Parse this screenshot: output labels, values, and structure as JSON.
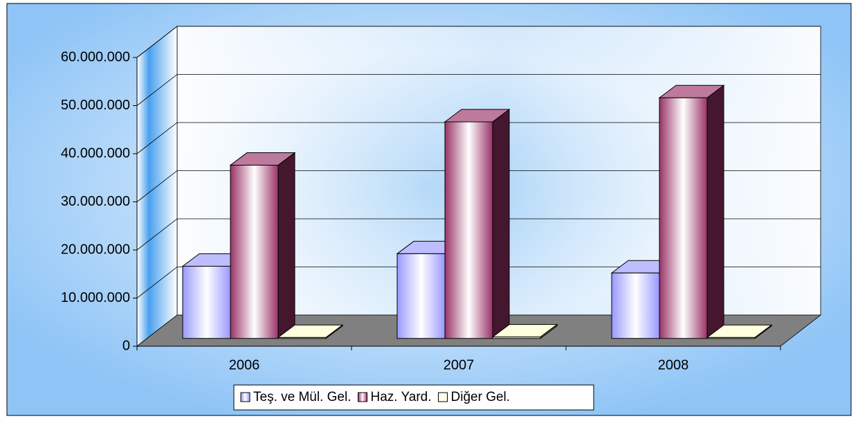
{
  "chart_data": {
    "type": "bar3d",
    "categories": [
      "2006",
      "2007",
      "2008"
    ],
    "series": [
      {
        "name": "Teş. ve Mül. Gel.",
        "color": "#9999ff",
        "values": [
          15000000,
          17600000,
          13600000
        ]
      },
      {
        "name": "Haz. Yard.",
        "color": "#993366",
        "values": [
          36000000,
          45000000,
          50000000
        ]
      },
      {
        "name": "Diğer Gel.",
        "color": "#ffffcc",
        "values": [
          200000,
          300000,
          200000
        ]
      }
    ],
    "ylim": [
      0,
      60000000
    ],
    "yticks": [
      0,
      {
        "value": 10000000,
        "label": "10.000.000"
      },
      {
        "value": 20000000,
        "label": "20.000.000"
      },
      {
        "value": 30000000,
        "label": "30.000.000"
      },
      {
        "value": 40000000,
        "label": "40.000.000"
      },
      {
        "value": 50000000,
        "label": "50.000.000"
      },
      {
        "value": 60000000,
        "label": "60.000.000"
      }
    ],
    "grid": true,
    "legend": "bottom"
  }
}
